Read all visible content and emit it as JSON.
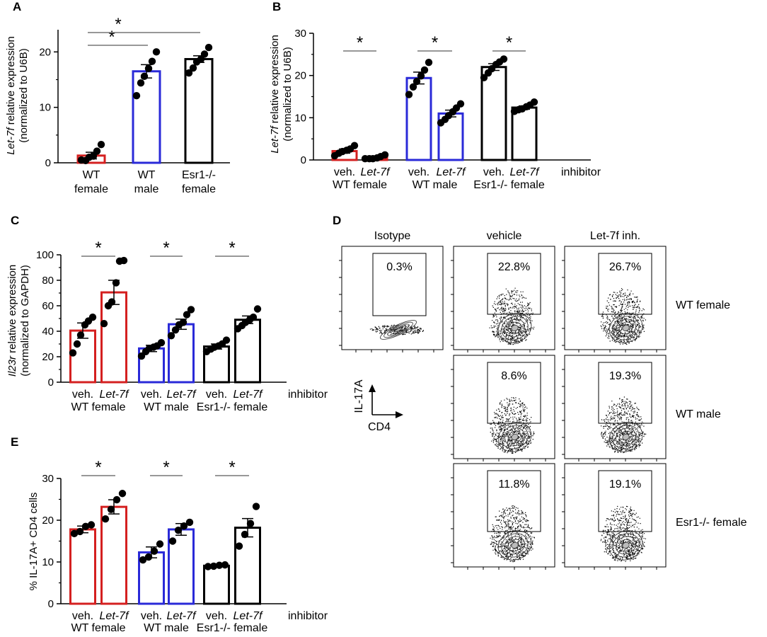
{
  "colors": {
    "red": "#d42020",
    "blue": "#2a2ad8",
    "black": "#000000"
  },
  "flow": {
    "panel_label": "D",
    "columns": [
      "Isotype",
      "vehicle",
      "Let-7f inh."
    ],
    "rows": [
      "WT female",
      "WT male",
      "Esr1-/- female"
    ],
    "percentages": [
      [
        "0.3%",
        "22.8%",
        "26.7%"
      ],
      [
        "",
        "8.6%",
        "19.3%"
      ],
      [
        "",
        "11.8%",
        "19.1%"
      ]
    ],
    "axis_y": "IL-17A",
    "axis_x": "CD4"
  },
  "chart_data": [
    {
      "id": "A",
      "type": "bar",
      "panel_label": "A",
      "ylabel_italic": "Let-7f",
      "ylabel_rest": " relative expression",
      "ylabel2": "(normalized to U6B)",
      "ylim": [
        0,
        24
      ],
      "ticks": [
        0,
        10,
        20
      ],
      "categories": [
        [
          "WT",
          "female"
        ],
        [
          "WT",
          "male"
        ],
        [
          "Esr1-/-",
          "female"
        ]
      ],
      "values": [
        1.3,
        16.5,
        18.7
      ],
      "errors": [
        0.6,
        1.2,
        0.6
      ],
      "colors": [
        "red",
        "blue",
        "black"
      ],
      "points": [
        [
          0.5,
          0.4,
          1.0,
          1.2,
          2.1,
          3.3
        ],
        [
          12.1,
          14.4,
          15.6,
          17.0,
          18.3,
          20.0
        ],
        [
          16.2,
          17.1,
          18.2,
          18.7,
          19.6,
          20.8
        ]
      ],
      "sig": [
        {
          "from": 0,
          "to": 1,
          "level": 0,
          "label": "*"
        },
        {
          "from": 0,
          "to": 2,
          "level": 1,
          "label": "*"
        }
      ],
      "group_labels": [],
      "inhibitor_label": ""
    },
    {
      "id": "B",
      "type": "bar",
      "panel_label": "B",
      "ylabel_italic": "Let-7f",
      "ylabel_rest": "  relative expression",
      "ylabel2": "(normalized to U6B)",
      "ylim": [
        0,
        30
      ],
      "ticks": [
        0,
        10,
        20,
        30
      ],
      "categories": [
        "veh.",
        "Let-7f",
        "veh.",
        "Let-7f",
        "veh.",
        "Let-7f"
      ],
      "values": [
        2.1,
        0.5,
        19.4,
        11.0,
        22.0,
        12.4
      ],
      "errors": [
        0.5,
        0.3,
        1.4,
        0.8,
        0.8,
        0.4
      ],
      "colors": [
        "red",
        "red",
        "blue",
        "blue",
        "black",
        "black"
      ],
      "points": [
        [
          1.0,
          1.6,
          2.0,
          2.3,
          2.6,
          3.4
        ],
        [
          -0.2,
          0.1,
          0.3,
          0.5,
          0.8,
          1.2
        ],
        [
          15.5,
          17.3,
          18.6,
          19.9,
          21.3,
          23.1
        ],
        [
          8.8,
          9.6,
          10.5,
          11.4,
          12.3,
          13.3
        ],
        [
          19.5,
          20.6,
          21.6,
          22.6,
          23.2,
          23.9
        ],
        [
          11.5,
          11.9,
          12.1,
          12.6,
          13.0,
          13.7
        ]
      ],
      "sig": [
        {
          "from": 0,
          "to": 1,
          "level": 0,
          "label": "*"
        },
        {
          "from": 2,
          "to": 3,
          "level": 0,
          "label": "*"
        },
        {
          "from": 4,
          "to": 5,
          "level": 0,
          "label": "*"
        }
      ],
      "group_labels": [
        "WT female",
        "WT male",
        "Esr1-/- female"
      ],
      "inhibitor_label": "inhibitor"
    },
    {
      "id": "C",
      "type": "bar",
      "panel_label": "C",
      "ylabel_italic": "Il23r",
      "ylabel_rest": " relative expression",
      "ylabel2": "(normalized to GAPDH)",
      "ylim": [
        0,
        100
      ],
      "ticks": [
        0,
        20,
        40,
        60,
        80,
        100
      ],
      "categories": [
        "veh.",
        "Let-7f",
        "veh.",
        "Let-7f",
        "veh.",
        "Let-7f"
      ],
      "values": [
        40.5,
        70.5,
        26.5,
        45.5,
        28.0,
        49.0
      ],
      "errors": [
        6.0,
        9.5,
        2.5,
        4.0,
        2.0,
        3.0
      ],
      "colors": [
        "red",
        "red",
        "blue",
        "blue",
        "black",
        "black"
      ],
      "points": [
        [
          23.0,
          30.0,
          37.0,
          45.0,
          48.0,
          51.0
        ],
        [
          46.0,
          60.0,
          63.0,
          78.0,
          95.0,
          95.5
        ],
        [
          20.5,
          24.0,
          26.5,
          27.5,
          28.5,
          31.0
        ],
        [
          36.5,
          41.0,
          45.0,
          47.0,
          53.0,
          57.0
        ],
        [
          24.0,
          26.0,
          27.5,
          28.5,
          30.0,
          33.0
        ],
        [
          42.0,
          44.5,
          47.0,
          49.0,
          51.0,
          57.5
        ]
      ],
      "sig": [
        {
          "from": 0,
          "to": 1,
          "level": 0,
          "label": "*"
        },
        {
          "from": 2,
          "to": 3,
          "level": 0,
          "label": "*"
        },
        {
          "from": 4,
          "to": 5,
          "level": 0,
          "label": "*"
        }
      ],
      "group_labels": [
        "WT female",
        "WT male",
        "Esr1-/- female"
      ],
      "inhibitor_label": "inhibitor"
    },
    {
      "id": "E",
      "type": "bar",
      "panel_label": "E",
      "ylabel_italic": "",
      "ylabel_rest": "% IL-17A+ CD4 cells",
      "ylabel2": "",
      "ylim": [
        0,
        30
      ],
      "ticks": [
        0,
        10,
        20,
        30
      ],
      "categories": [
        "veh.",
        "Let-7f",
        "veh.",
        "Let-7f",
        "veh.",
        "Let-7f"
      ],
      "values": [
        17.8,
        23.2,
        12.3,
        17.8,
        9.1,
        18.2
      ],
      "errors": [
        0.8,
        1.7,
        1.3,
        1.4,
        0.2,
        2.2
      ],
      "colors": [
        "red",
        "red",
        "blue",
        "blue",
        "black",
        "black"
      ],
      "points": [
        [
          16.8,
          17.3,
          18.5,
          18.9
        ],
        [
          20.3,
          22.6,
          24.9,
          26.4
        ],
        [
          10.5,
          11.2,
          12.6,
          14.3
        ],
        [
          15.0,
          17.6,
          18.6,
          19.5
        ],
        [
          8.9,
          9.0,
          9.2,
          9.3
        ],
        [
          13.8,
          16.6,
          19.2,
          23.3
        ]
      ],
      "sig": [
        {
          "from": 0,
          "to": 1,
          "level": 0,
          "label": "*"
        },
        {
          "from": 2,
          "to": 3,
          "level": 0,
          "label": "*"
        },
        {
          "from": 4,
          "to": 5,
          "level": 0,
          "label": "*"
        }
      ],
      "group_labels": [
        "WT female",
        "WT male",
        "Esr1-/- female"
      ],
      "inhibitor_label": "inhibitor"
    }
  ]
}
